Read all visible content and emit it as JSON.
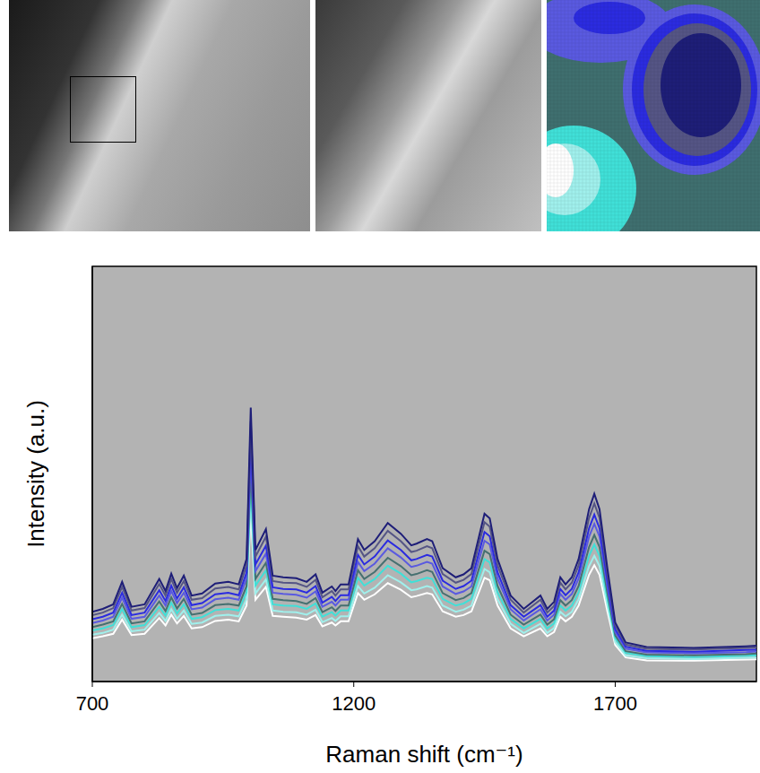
{
  "chart_data": {
    "type": "line",
    "x_label": "Raman shift (cm⁻¹)",
    "y_label": "Intensity (a.u.)",
    "xlim": [
      700,
      1970
    ],
    "xticks": [
      700,
      1200,
      1700
    ],
    "ylim": [
      0,
      100
    ],
    "tick_labels": "x",
    "grid": false,
    "x": [
      700,
      720,
      740,
      757,
      775,
      800,
      828,
      840,
      851,
      862,
      875,
      890,
      910,
      935,
      960,
      980,
      995,
      1003,
      1012,
      1032,
      1045,
      1065,
      1090,
      1110,
      1127,
      1140,
      1158,
      1165,
      1175,
      1190,
      1208,
      1220,
      1240,
      1265,
      1290,
      1310,
      1320,
      1340,
      1350,
      1370,
      1395,
      1410,
      1425,
      1450,
      1460,
      1475,
      1500,
      1525,
      1557,
      1570,
      1583,
      1595,
      1605,
      1617,
      1630,
      1650,
      1660,
      1670,
      1685,
      1700,
      1720,
      1760,
      1850,
      1950,
      1980
    ],
    "series": [
      {
        "color": "#1e1e78",
        "values": [
          16.8,
          17.5,
          18.6,
          24.0,
          18.0,
          18.6,
          24.7,
          21.8,
          26.0,
          22.5,
          25.5,
          20.7,
          21.2,
          23.6,
          24.0,
          23.4,
          29.5,
          66.0,
          31.7,
          36.7,
          25.5,
          25.1,
          24.9,
          24.0,
          25.8,
          21.4,
          22.9,
          21.8,
          23.4,
          23.4,
          34.3,
          31.7,
          33.8,
          38.2,
          35.6,
          32.8,
          33.2,
          34.3,
          33.8,
          27.3,
          25.1,
          25.8,
          27.3,
          40.4,
          39.3,
          29.5,
          20.7,
          17.5,
          20.7,
          17.5,
          19.2,
          25.1,
          23.4,
          25.1,
          29.5,
          41.5,
          45.2,
          41.5,
          27.3,
          14.2,
          9.4,
          8.3,
          8.1,
          8.5,
          8.7
        ]
      },
      {
        "color": "#555585",
        "values": [
          16.0,
          16.6,
          17.7,
          22.8,
          17.1,
          17.7,
          23.5,
          20.7,
          24.7,
          21.4,
          24.2,
          19.7,
          20.1,
          22.4,
          22.8,
          22.2,
          28.0,
          62.7,
          30.1,
          34.9,
          24.2,
          23.8,
          23.7,
          22.8,
          24.5,
          20.3,
          21.8,
          20.7,
          22.2,
          22.2,
          32.6,
          30.1,
          32.1,
          36.3,
          33.8,
          31.2,
          31.5,
          32.6,
          32.1,
          25.9,
          23.8,
          24.5,
          25.9,
          38.4,
          37.3,
          28.0,
          19.7,
          16.6,
          19.7,
          16.6,
          18.2,
          23.8,
          22.2,
          23.8,
          28.0,
          39.4,
          42.9,
          39.4,
          25.9,
          13.5,
          8.9,
          7.9,
          7.7,
          8.1,
          8.3
        ]
      },
      {
        "color": "#2b2be0",
        "values": [
          15.0,
          15.6,
          16.6,
          21.4,
          16.0,
          16.6,
          22.0,
          19.4,
          23.1,
          20.0,
          22.7,
          18.4,
          18.9,
          21.0,
          21.4,
          20.8,
          26.3,
          58.7,
          28.2,
          32.7,
          22.7,
          22.3,
          22.2,
          21.4,
          23.0,
          19.0,
          20.4,
          19.4,
          20.8,
          20.8,
          30.5,
          28.2,
          30.1,
          34.0,
          31.7,
          29.2,
          29.5,
          30.5,
          30.1,
          24.3,
          22.3,
          23.0,
          24.3,
          36.0,
          35.0,
          26.3,
          18.4,
          15.6,
          18.4,
          15.6,
          17.1,
          22.3,
          20.8,
          22.3,
          26.3,
          36.9,
          40.2,
          36.9,
          24.3,
          12.6,
          8.4,
          7.4,
          7.2,
          7.6,
          7.7
        ]
      },
      {
        "color": "#5a5ae0",
        "values": [
          14.1,
          14.7,
          15.6,
          20.2,
          15.1,
          15.6,
          20.7,
          18.3,
          21.8,
          18.9,
          21.4,
          17.4,
          17.8,
          19.8,
          20.2,
          19.7,
          24.8,
          55.4,
          26.6,
          30.8,
          21.4,
          21.1,
          20.9,
          20.2,
          21.7,
          18.0,
          19.2,
          18.3,
          19.7,
          19.7,
          28.8,
          26.6,
          28.4,
          32.1,
          29.9,
          27.6,
          27.9,
          28.8,
          28.4,
          22.9,
          21.1,
          21.7,
          22.9,
          33.9,
          33.0,
          24.8,
          17.4,
          14.7,
          17.4,
          14.7,
          16.1,
          21.1,
          19.7,
          21.1,
          24.8,
          34.9,
          38.0,
          34.9,
          22.9,
          11.9,
          7.9,
          7.0,
          6.8,
          7.1,
          7.3
        ]
      },
      {
        "color": "#467070",
        "values": [
          13.1,
          13.7,
          14.5,
          18.7,
          14.0,
          14.5,
          19.3,
          17.0,
          20.3,
          17.6,
          19.9,
          16.1,
          16.5,
          18.4,
          18.7,
          18.3,
          23.0,
          51.5,
          24.7,
          28.6,
          19.9,
          19.6,
          19.4,
          18.7,
          20.1,
          16.7,
          17.9,
          17.0,
          18.3,
          18.3,
          26.8,
          24.7,
          26.4,
          29.8,
          27.8,
          25.6,
          25.9,
          26.8,
          26.4,
          21.3,
          19.6,
          20.1,
          21.3,
          31.5,
          30.7,
          23.0,
          16.1,
          13.7,
          16.1,
          13.7,
          15.0,
          19.6,
          18.3,
          19.6,
          23.0,
          32.4,
          35.3,
          32.4,
          21.3,
          11.1,
          7.3,
          6.5,
          6.3,
          6.6,
          6.8
        ]
      },
      {
        "color": "#40e0d8",
        "values": [
          12.3,
          12.8,
          13.6,
          17.5,
          13.1,
          13.6,
          18.0,
          15.9,
          19.0,
          16.4,
          18.6,
          15.1,
          15.5,
          17.2,
          17.5,
          17.1,
          21.5,
          48.2,
          23.1,
          26.8,
          18.6,
          18.3,
          18.2,
          17.5,
          18.8,
          15.6,
          16.7,
          15.9,
          17.1,
          17.1,
          25.0,
          23.1,
          24.7,
          27.9,
          26.0,
          23.9,
          24.2,
          25.0,
          24.7,
          19.9,
          18.3,
          18.8,
          19.9,
          29.5,
          28.7,
          21.5,
          15.1,
          12.8,
          15.1,
          12.8,
          14.0,
          18.3,
          17.1,
          18.3,
          21.5,
          30.3,
          33.0,
          30.3,
          19.9,
          10.4,
          6.9,
          6.1,
          5.9,
          6.2,
          6.4
        ]
      },
      {
        "color": "#a0f0ec",
        "values": [
          11.3,
          11.7,
          12.5,
          16.1,
          12.1,
          12.5,
          16.5,
          14.6,
          17.4,
          15.1,
          17.1,
          13.9,
          14.2,
          15.8,
          16.1,
          15.7,
          19.8,
          44.2,
          21.2,
          24.6,
          17.1,
          16.8,
          16.7,
          16.1,
          17.3,
          14.3,
          15.3,
          14.6,
          15.7,
          15.7,
          23.0,
          21.2,
          22.6,
          25.6,
          23.9,
          22.0,
          22.2,
          23.0,
          22.6,
          18.3,
          16.8,
          17.3,
          18.3,
          27.1,
          26.3,
          19.8,
          13.9,
          11.7,
          13.9,
          11.7,
          12.9,
          16.8,
          15.7,
          16.8,
          19.8,
          27.8,
          30.3,
          27.8,
          18.3,
          9.5,
          6.3,
          5.6,
          5.4,
          5.7,
          5.8
        ]
      },
      {
        "color": "#ffffff",
        "values": [
          10.4,
          10.9,
          11.5,
          14.9,
          11.2,
          11.5,
          15.3,
          13.5,
          16.1,
          14.0,
          15.8,
          12.8,
          13.1,
          14.6,
          14.9,
          14.5,
          18.3,
          40.9,
          19.7,
          22.8,
          15.8,
          15.6,
          15.4,
          14.9,
          16.0,
          13.3,
          14.2,
          13.5,
          14.5,
          14.5,
          21.3,
          19.7,
          21.0,
          23.7,
          22.1,
          20.3,
          20.6,
          21.3,
          21.0,
          16.9,
          15.6,
          16.0,
          16.9,
          25.0,
          24.4,
          18.3,
          12.8,
          10.9,
          12.8,
          10.9,
          11.9,
          15.6,
          14.5,
          15.6,
          18.3,
          25.7,
          28.0,
          25.7,
          16.9,
          8.8,
          5.8,
          5.1,
          5.0,
          5.3,
          5.4
        ]
      }
    ]
  }
}
